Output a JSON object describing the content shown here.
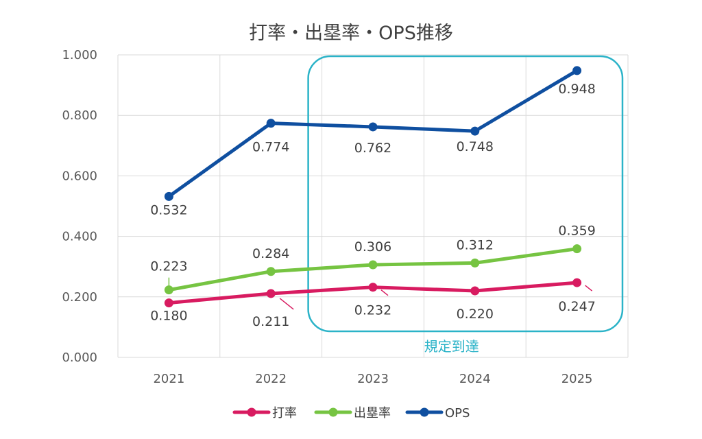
{
  "chart_data": {
    "type": "line",
    "title": "打率・出塁率・OPS推移",
    "categories": [
      "2021",
      "2022",
      "2023",
      "2024",
      "2025"
    ],
    "ylim": [
      0,
      1.0
    ],
    "yticks": [
      "0.000",
      "0.200",
      "0.400",
      "0.600",
      "0.800",
      "1.000"
    ],
    "grid": true,
    "legend_position": "bottom",
    "series": [
      {
        "name": "打率",
        "color": "#d81b60",
        "values": [
          0.18,
          0.211,
          0.232,
          0.22,
          0.247
        ],
        "labels": [
          "0.180",
          "0.211",
          "0.232",
          "0.220",
          "0.247"
        ]
      },
      {
        "name": "出塁率",
        "color": "#76c442",
        "values": [
          0.223,
          0.284,
          0.306,
          0.312,
          0.359
        ],
        "labels": [
          "0.223",
          "0.284",
          "0.306",
          "0.312",
          "0.359"
        ]
      },
      {
        "name": "OPS",
        "color": "#0f4fa0",
        "values": [
          0.532,
          0.774,
          0.762,
          0.748,
          0.948
        ],
        "labels": [
          "0.532",
          "0.774",
          "0.762",
          "0.748",
          "0.948"
        ]
      }
    ],
    "annotation": {
      "text": "規定到達",
      "color": "#2bb3c8",
      "range": [
        "2023",
        "2025"
      ]
    }
  }
}
